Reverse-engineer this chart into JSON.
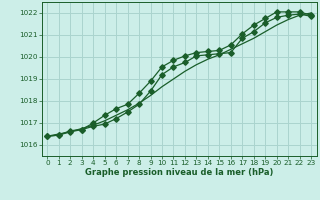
{
  "xlabel": "Graphe pression niveau de la mer (hPa)",
  "bg_color": "#cceee8",
  "grid_color": "#aad4ce",
  "line_color": "#1a5e2a",
  "ylim": [
    1015.5,
    1022.5
  ],
  "xlim": [
    -0.5,
    23.5
  ],
  "yticks": [
    1016,
    1017,
    1018,
    1019,
    1020,
    1021,
    1022
  ],
  "xticks": [
    0,
    1,
    2,
    3,
    4,
    5,
    6,
    7,
    8,
    9,
    10,
    11,
    12,
    13,
    14,
    15,
    16,
    17,
    18,
    19,
    20,
    21,
    22,
    23
  ],
  "smooth_x": [
    0,
    1,
    2,
    3,
    4,
    5,
    6,
    7,
    8,
    9,
    10,
    11,
    12,
    13,
    14,
    15,
    16,
    17,
    18,
    19,
    20,
    21,
    22,
    23
  ],
  "smooth_y": [
    1016.4,
    1016.5,
    1016.6,
    1016.75,
    1016.9,
    1017.1,
    1017.35,
    1017.6,
    1017.9,
    1018.25,
    1018.65,
    1019.0,
    1019.35,
    1019.65,
    1019.9,
    1020.1,
    1020.35,
    1020.6,
    1020.85,
    1021.15,
    1021.45,
    1021.7,
    1021.9,
    1022.0
  ],
  "upper_x": [
    0,
    1,
    2,
    3,
    4,
    5,
    6,
    7,
    8,
    9,
    10,
    11,
    12,
    13,
    14,
    15,
    16,
    17,
    18,
    19,
    20,
    21,
    22,
    23
  ],
  "upper_y": [
    1016.4,
    1016.45,
    1016.65,
    1016.7,
    1017.0,
    1017.35,
    1017.65,
    1017.85,
    1018.35,
    1018.9,
    1019.55,
    1019.85,
    1020.05,
    1020.2,
    1020.25,
    1020.3,
    1020.55,
    1021.05,
    1021.45,
    1021.75,
    1022.05,
    1022.05,
    1022.05,
    1021.9
  ],
  "lower_x": [
    0,
    1,
    2,
    3,
    4,
    5,
    6,
    7,
    8,
    9,
    10,
    11,
    12,
    13,
    14,
    15,
    16,
    17,
    18,
    19,
    20,
    21,
    22,
    23
  ],
  "lower_y": [
    1016.4,
    1016.45,
    1016.6,
    1016.7,
    1016.85,
    1016.95,
    1017.2,
    1017.5,
    1017.85,
    1018.45,
    1019.2,
    1019.55,
    1019.75,
    1020.05,
    1020.1,
    1020.15,
    1020.2,
    1020.85,
    1021.15,
    1021.55,
    1021.8,
    1021.9,
    1021.95,
    1021.85
  ],
  "marker": "D",
  "marker_size": 2.8,
  "linewidth": 0.9,
  "tick_fontsize": 5.2,
  "xlabel_fontsize": 6.0
}
